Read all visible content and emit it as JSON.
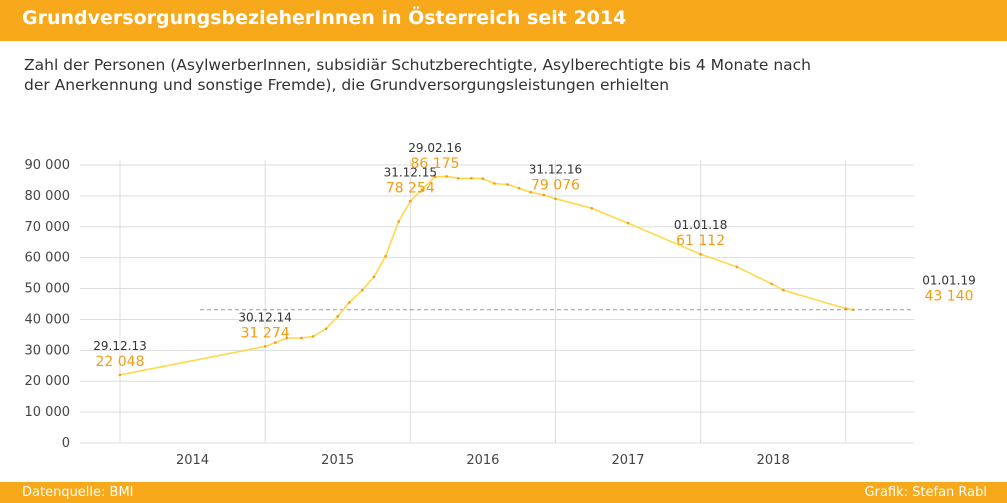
{
  "header": {
    "title": "GrundversorgungsbezieherInnen in Österreich seit 2014"
  },
  "subtitle": {
    "line1": "Zahl der Personen (AsylwerberInnen, subsidiär Schutzberechtigte, Asylberechtigte bis 4 Monate nach",
    "line2": "der Anerkennung und sonstige Fremde), die Grundversorgungsleistungen erhielten"
  },
  "footer": {
    "source": "Datenquelle: BMI",
    "credit": "Grafik: Stefan Rabl"
  },
  "colors": {
    "accent": "#f8a81b",
    "line": "#ffd84a",
    "value_text": "#f39c12",
    "grid": "#dddddd",
    "reference": "#999999"
  },
  "chart_data": {
    "type": "line",
    "title": "GrundversorgungsbezieherInnen in Österreich seit 2014",
    "xlabel": "",
    "ylabel": "",
    "x_domain": [
      2013.5,
      2018.97
    ],
    "ylim": [
      0,
      90000
    ],
    "y_ticks": [
      0,
      10000,
      20000,
      30000,
      40000,
      50000,
      60000,
      70000,
      80000,
      90000
    ],
    "y_tick_labels": [
      "0",
      "10 000",
      "20 000",
      "30 000",
      "40 000",
      "50 000",
      "60 000",
      "70 000",
      "80 000",
      "90 000"
    ],
    "x_ticks": [
      2014,
      2015,
      2016,
      2017,
      2018
    ],
    "x_tick_labels": [
      "2014",
      "2015",
      "2016",
      "2017",
      "2018"
    ],
    "x_gridlines": [
      2013.5,
      2014.5,
      2015.5,
      2016.5,
      2017.5,
      2018.5
    ],
    "reference_line": {
      "value": 43140,
      "style": "dashed"
    },
    "series": [
      {
        "name": "GrundversorgungsbezieherInnen",
        "points": [
          [
            2013.5,
            22048
          ],
          [
            2014.5,
            31274
          ],
          [
            2014.57,
            32500
          ],
          [
            2014.65,
            34000
          ],
          [
            2014.75,
            34000
          ],
          [
            2014.83,
            34500
          ],
          [
            2014.92,
            37000
          ],
          [
            2015.0,
            41000
          ],
          [
            2015.08,
            45500
          ],
          [
            2015.17,
            49500
          ],
          [
            2015.25,
            53800
          ],
          [
            2015.33,
            60500
          ],
          [
            2015.42,
            71700
          ],
          [
            2015.5,
            78254
          ],
          [
            2015.58,
            82000
          ],
          [
            2015.67,
            86175
          ],
          [
            2015.75,
            86300
          ],
          [
            2015.83,
            85700
          ],
          [
            2015.92,
            85700
          ],
          [
            2016.0,
            85600
          ],
          [
            2016.08,
            84000
          ],
          [
            2016.17,
            83700
          ],
          [
            2016.25,
            82500
          ],
          [
            2016.33,
            81200
          ],
          [
            2016.42,
            80300
          ],
          [
            2016.5,
            79076
          ],
          [
            2016.75,
            76000
          ],
          [
            2017.0,
            71200
          ],
          [
            2017.5,
            61112
          ],
          [
            2017.75,
            57000
          ],
          [
            2017.99,
            51500
          ],
          [
            2018.07,
            49500
          ],
          [
            2018.5,
            43500
          ],
          [
            2018.55,
            43140
          ]
        ]
      }
    ],
    "annotations": [
      {
        "x": 2013.5,
        "y": 22048,
        "date": "29.12.13",
        "value": "22 048"
      },
      {
        "x": 2014.5,
        "y": 31274,
        "date": "30.12.14",
        "value": "31 274"
      },
      {
        "x": 2015.5,
        "y": 78254,
        "date": "31.12.15",
        "value": "78 254"
      },
      {
        "x": 2015.67,
        "y": 86175,
        "date": "29.02.16",
        "value": "86 175"
      },
      {
        "x": 2016.5,
        "y": 79076,
        "date": "31.12.16",
        "value": "79 076"
      },
      {
        "x": 2017.5,
        "y": 61112,
        "date": "01.01.18",
        "value": "61 112"
      },
      {
        "x": 2018.55,
        "y": 43140,
        "date": "01.01.19",
        "value": "43 140"
      }
    ]
  }
}
